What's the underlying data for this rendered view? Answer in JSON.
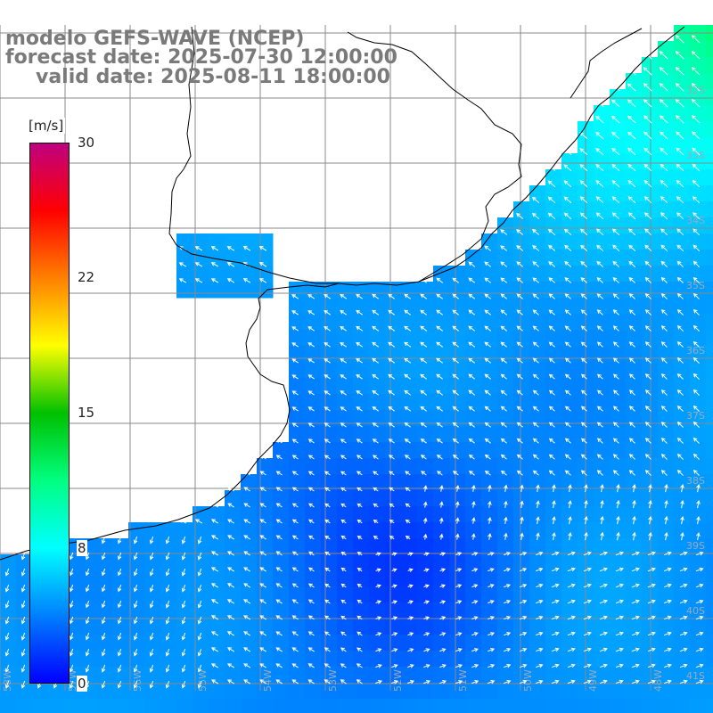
{
  "title": {
    "model": "modelo GEFS-WAVE (NCEP)",
    "forecast": "forecast date: 2025-07-30 12:00:00",
    "valid": "valid date: 2025-08-11 18:00:00"
  },
  "colorbar": {
    "unit": "[m/s]",
    "ticks": [
      "30",
      "22",
      "15",
      "8",
      "0"
    ],
    "range": [
      0,
      30
    ],
    "colors": [
      "#0000ff",
      "#0080ff",
      "#00ffff",
      "#00ff80",
      "#00c000",
      "#ffff00",
      "#ff8000",
      "#ff0000",
      "#c00080"
    ]
  },
  "map": {
    "land_color": "#ffffff",
    "coast_color": "#000000",
    "grid_color": "#8a8a8a",
    "lat_labels": [
      "32S",
      "33S",
      "34S",
      "35S",
      "36S",
      "37S",
      "38S",
      "39S",
      "40S",
      "41S"
    ],
    "lon_labels": [
      "58W",
      "57W",
      "56W",
      "55W",
      "54W",
      "53W",
      "52W",
      "51W",
      "50W",
      "49W",
      "48W"
    ]
  },
  "chart_data": {
    "type": "heatmap",
    "title": "modelo GEFS-WAVE (NCEP)",
    "variable": "wind speed",
    "unit": "m/s",
    "color_range": [
      0,
      30
    ],
    "colormap": "rainbow",
    "wind_direction_summary": "northwest-ward near coast, turning north and north-east in south-east, south-westward in south-west",
    "approx_speed_range": [
      2,
      11
    ]
  }
}
